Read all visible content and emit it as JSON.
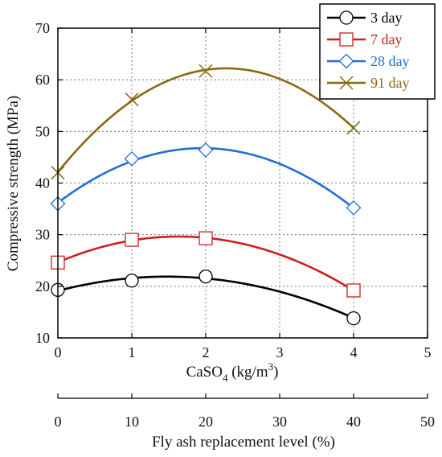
{
  "chart_data": {
    "type": "scatter",
    "x": [
      0,
      1,
      2,
      4
    ],
    "xlabel": "CaSO",
    "xlabel_sub": "4",
    "xlabel_unit_pre": " (kg/m",
    "xlabel_unit_sup": "3",
    "xlabel_unit_post": ")",
    "ylabel": "Compressive strength (MPa)",
    "secondary_xlabel": "Fly ash replacement level (%)",
    "xlim": [
      0,
      5
    ],
    "ylim": [
      10,
      70
    ],
    "xticks": [
      "0",
      "1",
      "2",
      "3",
      "4",
      "5"
    ],
    "yticks": [
      "10",
      "20",
      "30",
      "40",
      "50",
      "60",
      "70"
    ],
    "secondary_xticks": [
      "0",
      "10",
      "20",
      "30",
      "40",
      "50"
    ],
    "grid": true,
    "legend_position": "top-right",
    "series": [
      {
        "name": "3 day",
        "marker": "circle",
        "color": "#000000",
        "values": [
          19.3,
          21.1,
          21.9,
          13.8
        ]
      },
      {
        "name": "7 day",
        "marker": "square",
        "color": "#cc1f1f",
        "values": [
          24.6,
          29.0,
          29.3,
          19.2
        ]
      },
      {
        "name": "28 day",
        "marker": "diamond",
        "color": "#1f6fd6",
        "values": [
          36.0,
          44.7,
          46.4,
          35.2
        ]
      },
      {
        "name": "91 day",
        "marker": "x",
        "color": "#8a6a12",
        "values": [
          42.0,
          56.2,
          61.7,
          50.7
        ]
      }
    ]
  }
}
